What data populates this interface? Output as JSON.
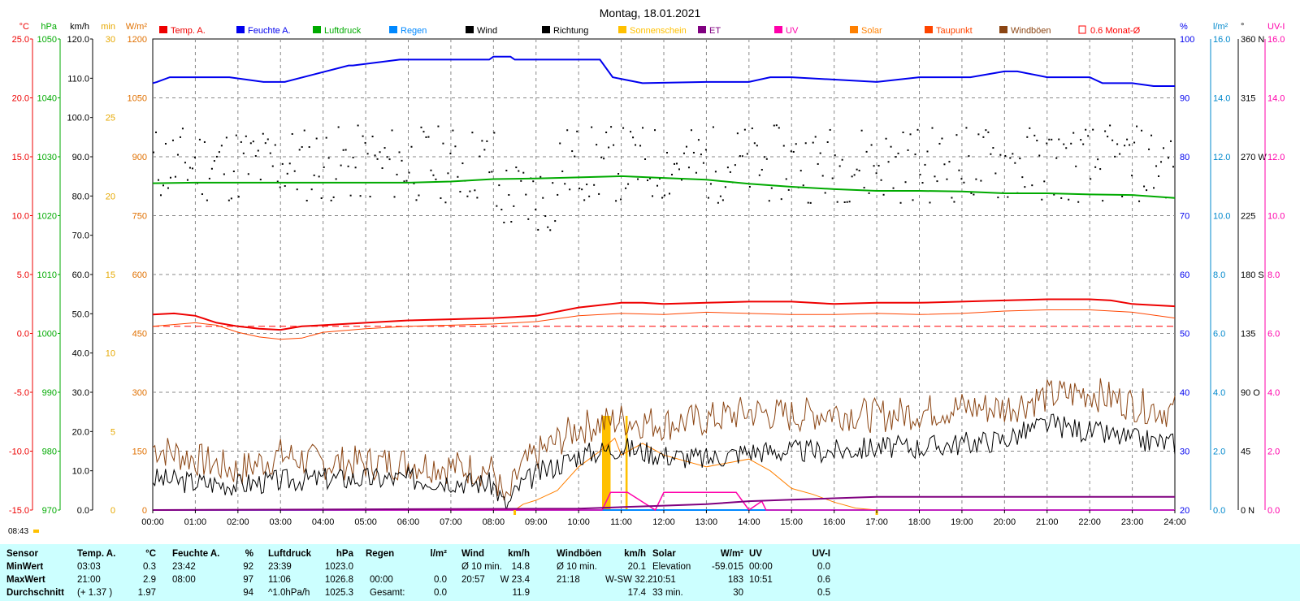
{
  "title": "Montag, 18.01.2021",
  "time_label": "08:43",
  "colors": {
    "temp": "#ee0000",
    "hum": "#0000ee",
    "press": "#00aa00",
    "wind": "#000000",
    "gust": "#8b4513",
    "sun": "#ffc000",
    "solar": "#ff8000",
    "dew": "#ff4500",
    "et": "#800080",
    "uv": "#ff00aa",
    "rain": "#0088ff",
    "grid": "#888888",
    "summary_bg": "#ccffff"
  },
  "legend": [
    {
      "label": "Temp. A.",
      "color": "#ee0000",
      "type": "fill"
    },
    {
      "label": "Feuchte A.",
      "color": "#0000ee",
      "type": "fill"
    },
    {
      "label": "Luftdruck",
      "color": "#00aa00",
      "type": "fill"
    },
    {
      "label": "Regen",
      "color": "#0088ff",
      "type": "fill"
    },
    {
      "label": "Wind",
      "color": "#000000",
      "type": "fill"
    },
    {
      "label": "Richtung",
      "color": "#000000",
      "type": "fill"
    },
    {
      "label": "Sonnenschein",
      "color": "#ffc000",
      "type": "fill"
    },
    {
      "label": "ET",
      "color": "#800080",
      "type": "fill"
    },
    {
      "label": "UV",
      "color": "#ff00aa",
      "type": "fill"
    },
    {
      "label": "Solar",
      "color": "#ff8000",
      "type": "fill"
    },
    {
      "label": "Taupunkt",
      "color": "#ff4500",
      "type": "fill"
    },
    {
      "label": "Windböen",
      "color": "#8b4513",
      "type": "fill"
    },
    {
      "label": "0.6 Monat-Ø",
      "color": "#ff0000",
      "type": "outline"
    }
  ],
  "axes": {
    "left": [
      {
        "unit": "°C",
        "color": "#ee0000",
        "ticks": [
          "25.0",
          "20.0",
          "15.0",
          "10.0",
          "5.0",
          "0.0",
          "-5.0",
          "-10.0",
          "-15.0"
        ]
      },
      {
        "unit": "hPa",
        "color": "#00aa00",
        "ticks": [
          "1050",
          "1040",
          "1030",
          "1020",
          "1010",
          "1000",
          "990",
          "980",
          "970"
        ]
      },
      {
        "unit": "km/h",
        "color": "#000000",
        "ticks": [
          "120.0",
          "110.0",
          "100.0",
          "90.0",
          "80.0",
          "70.0",
          "60.0",
          "50.0",
          "40.0",
          "30.0",
          "20.0",
          "10.0",
          "0.0"
        ]
      },
      {
        "unit": "min",
        "color": "#e6a800",
        "ticks": [
          "30",
          "25",
          "20",
          "15",
          "10",
          "5",
          "0"
        ]
      },
      {
        "unit": "W/m²",
        "color": "#e07000",
        "ticks": [
          "1200",
          "1050",
          "900",
          "750",
          "600",
          "450",
          "300",
          "150",
          "0"
        ]
      }
    ],
    "right": [
      {
        "unit": "%",
        "color": "#0000ee",
        "ticks": [
          "100",
          "90",
          "80",
          "70",
          "60",
          "50",
          "40",
          "30",
          "20"
        ]
      },
      {
        "unit": "l/m²",
        "color": "#0088cc",
        "ticks": [
          "16.0",
          "14.0",
          "12.0",
          "10.0",
          "8.0",
          "6.0",
          "4.0",
          "2.0",
          "0.0"
        ]
      },
      {
        "unit": "°",
        "color": "#000000",
        "ticks": [
          "360 N",
          "315",
          "270 W",
          "225",
          "180 S",
          "135",
          "90 O",
          "45",
          "0 N"
        ]
      },
      {
        "unit": "UV-I",
        "color": "#ff00aa",
        "ticks": [
          "16.0",
          "14.0",
          "12.0",
          "10.0",
          "8.0",
          "6.0",
          "4.0",
          "2.0",
          "0.0"
        ]
      }
    ],
    "x_ticks": [
      "00:00",
      "01:00",
      "02:00",
      "03:00",
      "04:00",
      "05:00",
      "06:00",
      "07:00",
      "08:00",
      "09:00",
      "10:00",
      "11:00",
      "12:00",
      "13:00",
      "14:00",
      "15:00",
      "16:00",
      "17:00",
      "18:00",
      "19:00",
      "20:00",
      "21:00",
      "22:00",
      "23:00",
      "24:00"
    ]
  },
  "chart_data": {
    "type": "line",
    "x_unit": "hours",
    "xlim": [
      0,
      24
    ],
    "series": [
      {
        "name": "Temp. A.",
        "unit": "°C",
        "x": [
          0,
          0.5,
          1,
          1.5,
          2,
          2.5,
          3,
          3.5,
          4,
          5,
          6,
          7,
          8,
          9,
          10,
          10.5,
          11,
          11.5,
          12,
          13,
          14,
          15,
          16,
          17,
          18,
          19,
          20,
          21,
          22,
          22.5,
          23,
          24
        ],
        "y": [
          1.6,
          1.7,
          1.5,
          0.9,
          0.6,
          0.4,
          0.3,
          0.6,
          0.7,
          0.9,
          1.1,
          1.2,
          1.3,
          1.5,
          2.2,
          2.4,
          2.6,
          2.6,
          2.5,
          2.6,
          2.7,
          2.7,
          2.5,
          2.6,
          2.6,
          2.7,
          2.8,
          2.9,
          2.9,
          2.8,
          2.5,
          2.3
        ]
      },
      {
        "name": "Taupunkt",
        "unit": "°C",
        "x": [
          0,
          1,
          1.5,
          2,
          2.5,
          3,
          3.5,
          4,
          5,
          6,
          7,
          8,
          9,
          10,
          11,
          12,
          13,
          14,
          15,
          16,
          17,
          18,
          19,
          20,
          21,
          22,
          23,
          24
        ],
        "y": [
          0.6,
          0.9,
          0.7,
          0.1,
          -0.3,
          -0.5,
          -0.4,
          0.1,
          0.4,
          0.6,
          0.7,
          0.8,
          1.0,
          1.5,
          1.7,
          1.6,
          1.8,
          1.7,
          1.6,
          1.6,
          1.7,
          1.6,
          1.7,
          1.9,
          2.0,
          2.0,
          1.8,
          1.3
        ]
      },
      {
        "name": "0.6 Monat-Ø",
        "unit": "°C",
        "x": [
          0,
          24
        ],
        "y": [
          0.6,
          0.6
        ]
      },
      {
        "name": "Feuchte A.",
        "unit": "%",
        "x": [
          0,
          0.1,
          0.4,
          1.8,
          2.6,
          3.1,
          4.6,
          4.7,
          5.8,
          5.9,
          7.5,
          7.9,
          8.0,
          8.4,
          8.5,
          8.9,
          9.1,
          10.5,
          10.8,
          11.5,
          13.0,
          14.0,
          14.5,
          15.0,
          17.0,
          18.0,
          19.0,
          19.2,
          20.0,
          20.3,
          21.0,
          22.0,
          22.3,
          23.0,
          23.5,
          24.0
        ],
        "y": [
          92.5,
          92.7,
          93.5,
          93.5,
          92.7,
          92.7,
          95.5,
          95.5,
          96.5,
          96.5,
          96.5,
          96.5,
          97.0,
          97.0,
          96.5,
          96.5,
          96.5,
          96.5,
          93.5,
          92.5,
          92.7,
          92.7,
          93.5,
          93.5,
          92.7,
          93.5,
          93.5,
          93.5,
          94.5,
          94.5,
          93.5,
          93.5,
          92.5,
          92.5,
          92.0,
          92.0
        ]
      },
      {
        "name": "Luftdruck",
        "unit": "hPa",
        "x": [
          0,
          1,
          2,
          3,
          4,
          5,
          6,
          7,
          8,
          9,
          10,
          11,
          12,
          13,
          14,
          15,
          16,
          17,
          18,
          19,
          20,
          21,
          22,
          23,
          24
        ],
        "y": [
          1025.5,
          1025.6,
          1025.6,
          1025.6,
          1025.6,
          1025.6,
          1025.6,
          1025.8,
          1026.2,
          1026.3,
          1026.5,
          1026.7,
          1026.4,
          1026.1,
          1025.4,
          1024.9,
          1024.5,
          1024.2,
          1024.2,
          1024.1,
          1023.8,
          1023.8,
          1023.6,
          1023.5,
          1023.0
        ]
      },
      {
        "name": "Wind",
        "unit": "km/h",
        "x": [
          0,
          1,
          2,
          3,
          4,
          5,
          6,
          7,
          8,
          8.3,
          8.6,
          9,
          10,
          11,
          12,
          13,
          14,
          15,
          16,
          17,
          18,
          19,
          20,
          21,
          22,
          23,
          24
        ],
        "y": [
          8.0,
          7.0,
          6.5,
          7.5,
          8.0,
          8.0,
          8.0,
          7.5,
          6.5,
          0.5,
          6.0,
          9.0,
          14.0,
          16.0,
          14.0,
          13.0,
          15.0,
          15.0,
          15.0,
          16.0,
          16.0,
          17.0,
          18.0,
          22.0,
          20.0,
          18.0,
          17.0
        ]
      },
      {
        "name": "Windböen",
        "unit": "km/h",
        "x": [
          0,
          1,
          2,
          3,
          4,
          5,
          6,
          7,
          8,
          8.3,
          8.6,
          9,
          10,
          11,
          12,
          13,
          14,
          15,
          16,
          17,
          18,
          19,
          20,
          21,
          22,
          23,
          24
        ],
        "y": [
          16.0,
          13.0,
          10.0,
          14.0,
          12.0,
          12.0,
          12.0,
          11.0,
          10.0,
          1.0,
          10.0,
          14.0,
          21.0,
          23.0,
          22.0,
          23.0,
          25.0,
          24.0,
          25.0,
          24.0,
          25.0,
          26.0,
          26.0,
          29.0,
          30.0,
          27.0,
          25.0
        ]
      },
      {
        "name": "Solar",
        "unit": "W/m²",
        "x": [
          0,
          8.5,
          8.7,
          9,
          9.5,
          10,
          10.5,
          10.85,
          11,
          11.5,
          12,
          13,
          14,
          14.5,
          15,
          15.5,
          16,
          16.5,
          17,
          24
        ],
        "y": [
          0,
          0,
          15,
          25,
          50,
          110,
          150,
          183,
          140,
          170,
          140,
          110,
          130,
          100,
          55,
          40,
          20,
          5,
          0,
          0
        ]
      },
      {
        "name": "Sonnenschein",
        "unit": "min",
        "x": [
          10.55,
          10.75,
          11.1,
          11.15
        ],
        "y": [
          6,
          6,
          6,
          6
        ]
      },
      {
        "name": "UV",
        "unit": "UV-I",
        "x": [
          0,
          10.55,
          10.75,
          11.15,
          11.8,
          12.0,
          13.7,
          14.0,
          14.3,
          14.4,
          24
        ],
        "y": [
          0,
          0,
          0.6,
          0.6,
          0.0,
          0.6,
          0.6,
          0.0,
          0.3,
          0.0,
          0.0
        ]
      },
      {
        "name": "ET",
        "unit": "l/m²",
        "x": [
          0,
          10,
          11,
          12,
          13,
          14,
          15,
          16,
          17,
          24
        ],
        "y": [
          0,
          0.05,
          0.1,
          0.15,
          0.2,
          0.3,
          0.35,
          0.4,
          0.45,
          0.45
        ]
      },
      {
        "name": "Regen",
        "unit": "l/m²",
        "x": [
          0,
          24
        ],
        "y": [
          0,
          0
        ]
      }
    ]
  },
  "summary": {
    "headers": [
      "Sensor",
      "Temp. A.",
      "°C",
      "Feuchte A.",
      "%",
      "Luftdruck",
      "hPa",
      "Regen",
      "l/m²",
      "Wind",
      "km/h",
      "Windböen",
      "km/h",
      "Solar",
      "W/m²",
      "UV",
      "UV-I"
    ],
    "rows": [
      {
        "label": "MinWert",
        "cells": [
          "03:03",
          "0.3",
          "23:42",
          "92",
          "23:39",
          "1023.0",
          "",
          "",
          "Ø 10 min.",
          "14.8",
          "Ø 10 min.",
          "20.1",
          "Elevation",
          "-59.015",
          "00:00",
          "0.0"
        ]
      },
      {
        "label": "MaxWert",
        "cells": [
          "21:00",
          "2.9",
          "08:00",
          "97",
          "11:06",
          "1026.8",
          "00:00",
          "0.0",
          "20:57",
          "W 23.4",
          "21:18",
          "W-SW 32.2",
          "10:51",
          "183",
          "10:51",
          "0.6"
        ]
      },
      {
        "label": "Durchschnitt",
        "cells": [
          "(+ 1.37 )",
          "1.97",
          "",
          "94",
          "^1.0hPa/h",
          "1025.3",
          "Gesamt:",
          "0.0",
          "",
          "11.9",
          "",
          "17.4",
          "33 min.",
          "30",
          "",
          "0.5"
        ]
      }
    ]
  }
}
